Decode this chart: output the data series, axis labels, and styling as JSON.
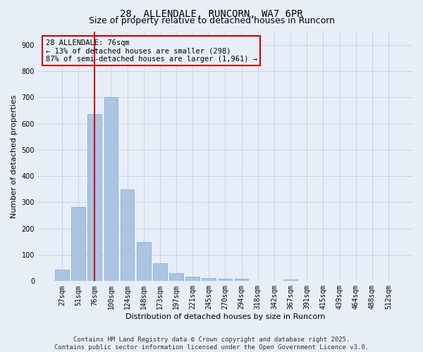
{
  "title": "28, ALLENDALE, RUNCORN, WA7 6PR",
  "subtitle": "Size of property relative to detached houses in Runcorn",
  "xlabel": "Distribution of detached houses by size in Runcorn",
  "ylabel": "Number of detached properties",
  "categories": [
    "27sqm",
    "51sqm",
    "76sqm",
    "100sqm",
    "124sqm",
    "148sqm",
    "173sqm",
    "197sqm",
    "221sqm",
    "245sqm",
    "270sqm",
    "294sqm",
    "318sqm",
    "342sqm",
    "367sqm",
    "391sqm",
    "415sqm",
    "439sqm",
    "464sqm",
    "488sqm",
    "512sqm"
  ],
  "values": [
    43,
    283,
    635,
    700,
    350,
    148,
    68,
    30,
    17,
    12,
    10,
    8,
    0,
    0,
    7,
    0,
    0,
    0,
    0,
    0,
    0
  ],
  "bar_color": "#aac4e2",
  "bar_edge_color": "#7aaad0",
  "highlight_index": 2,
  "highlight_color": "#cc0000",
  "ylim": [
    0,
    950
  ],
  "yticks": [
    0,
    100,
    200,
    300,
    400,
    500,
    600,
    700,
    800,
    900
  ],
  "annotation_text": "28 ALLENDALE: 76sqm\n← 13% of detached houses are smaller (298)\n87% of semi-detached houses are larger (1,961) →",
  "annotation_box_color": "#cc0000",
  "footer_line1": "Contains HM Land Registry data © Crown copyright and database right 2025.",
  "footer_line2": "Contains public sector information licensed under the Open Government Licence v3.0.",
  "bg_color": "#e8eef8",
  "grid_color": "#c8d4ec",
  "title_fontsize": 10,
  "subtitle_fontsize": 9,
  "axis_label_fontsize": 8,
  "tick_fontsize": 7,
  "footer_fontsize": 6.5,
  "annotation_fontsize": 7.5
}
